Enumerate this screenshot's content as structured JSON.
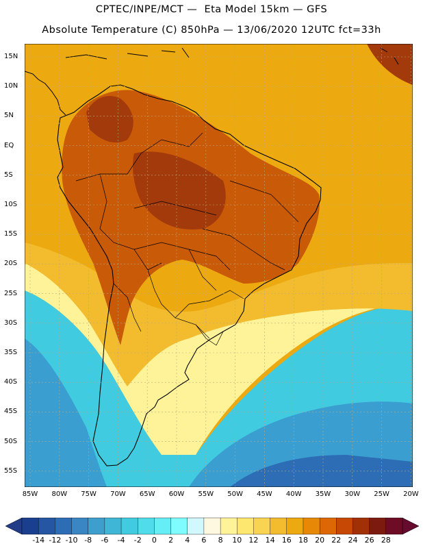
{
  "title": {
    "line1": "CPTEC/INPE/MCT —  Eta Model 15km — GFS",
    "line2": "Absolute Temperature (C) 850hPa — 13/06/2020 12UTC fct=33h"
  },
  "lat_labels": [
    "15N",
    "10N",
    "5N",
    "EQ",
    "5S",
    "10S",
    "15S",
    "20S",
    "25S",
    "30S",
    "35S",
    "40S",
    "45S",
    "50S",
    "55S"
  ],
  "lon_labels": [
    "85W",
    "80W",
    "75W",
    "70W",
    "65W",
    "60W",
    "55W",
    "50W",
    "45W",
    "40W",
    "35W",
    "30W",
    "25W",
    "20W"
  ],
  "colorbar": {
    "labels": [
      "-14",
      "-12",
      "-10",
      "-8",
      "-6",
      "-4",
      "-2",
      "0",
      "2",
      "4",
      "6",
      "8",
      "10",
      "12",
      "14",
      "16",
      "18",
      "20",
      "22",
      "24",
      "26",
      "28"
    ],
    "colors": [
      "#1a3f8f",
      "#2456a4",
      "#2d6db5",
      "#3a86c4",
      "#3f9fcc",
      "#3fb6d6",
      "#41cbe0",
      "#50dcea",
      "#66eef6",
      "#7ffcff",
      "#d2f8ff",
      "#fff8e0",
      "#fff39a",
      "#fde76e",
      "#f8d452",
      "#f2bc2e",
      "#ecaa10",
      "#e78906",
      "#dd6605",
      "#c74805",
      "#a23007",
      "#7c1a10",
      "#6d0c24"
    ],
    "under_color": "#223c8a",
    "over_color": "#660a2e"
  },
  "field_colors": {
    "ocean_tropical": "#ecaa10",
    "hot": "#c85a08",
    "very_hot": "#a33a0c",
    "warm": "#e78906",
    "mild": "#f2bc2e",
    "cool": "#fff39a",
    "cold_light": "#7ffcff",
    "cold": "#41cbe0",
    "colder": "#3a9fd0",
    "coldest": "#2d6db5",
    "deep_cold": "#24509e",
    "coast_line": "#000000"
  }
}
